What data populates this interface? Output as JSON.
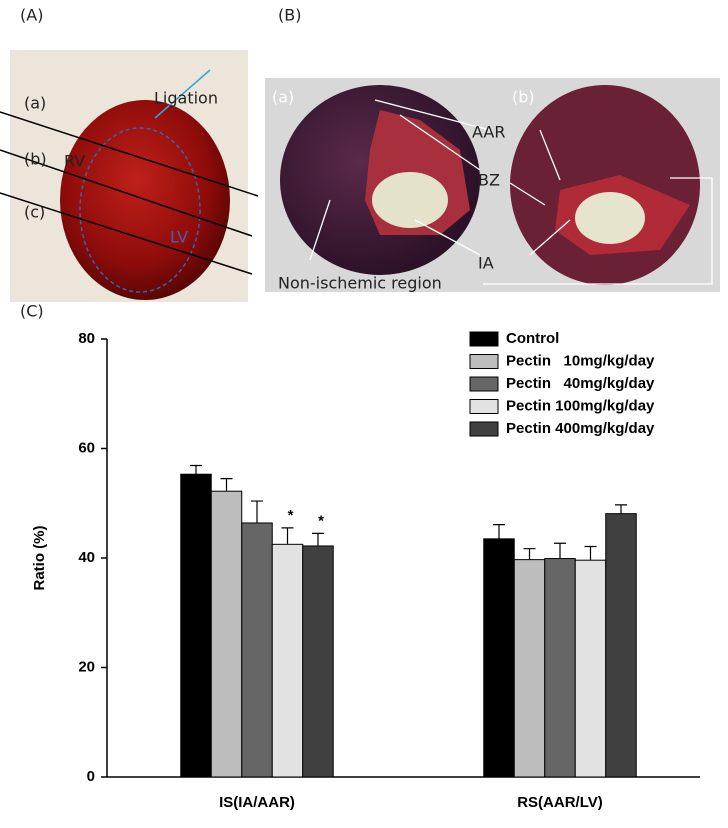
{
  "panel_a": {
    "label": "(A)",
    "annotations": [
      "Ligation",
      "(a)",
      "(b)",
      "(c)",
      "RV",
      "LV"
    ]
  },
  "panel_b": {
    "label": "(B)",
    "annotations": [
      "(a)",
      "(b)",
      "AAR",
      "BZ",
      "IA",
      "Non-ischemic region"
    ]
  },
  "chart_data": {
    "type": "bar",
    "panel_label": "(C)",
    "ylabel": "Ratio (%)",
    "categories": [
      "IS(IA/AAR)",
      "RS(AAR/LV)"
    ],
    "series": [
      {
        "name": "Control",
        "color": "#000000",
        "values": [
          55.3,
          43.5
        ],
        "errors": [
          1.6,
          2.6
        ],
        "markers": [
          null,
          null
        ]
      },
      {
        "name": "Pectin   10mg/kg/day",
        "color": "#bdbdbd",
        "values": [
          52.2,
          39.7
        ],
        "errors": [
          2.3,
          2.0
        ],
        "markers": [
          null,
          null
        ]
      },
      {
        "name": "Pectin   40mg/kg/day",
        "color": "#666666",
        "values": [
          46.4,
          39.9
        ],
        "errors": [
          4.0,
          2.8
        ],
        "markers": [
          null,
          null
        ]
      },
      {
        "name": "Pectin 100mg/kg/day",
        "color": "#e2e2e2",
        "values": [
          42.5,
          39.6
        ],
        "errors": [
          3.0,
          2.5
        ],
        "markers": [
          "*",
          null
        ]
      },
      {
        "name": "Pectin 400mg/kg/day",
        "color": "#404040",
        "values": [
          42.2,
          48.1
        ],
        "errors": [
          2.3,
          1.6
        ],
        "markers": [
          "*",
          null
        ]
      }
    ],
    "ylim": [
      0,
      80
    ],
    "yticks": [
      0,
      20,
      40,
      60,
      80
    ],
    "grid": false,
    "legend": "top-right"
  }
}
